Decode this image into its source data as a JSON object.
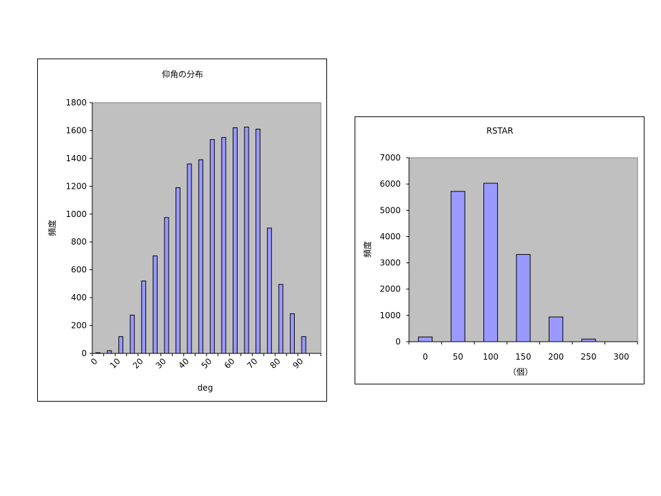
{
  "chart_data": [
    {
      "type": "bar",
      "title": "仰角の分布",
      "xlabel": "deg",
      "ylabel": "頻度",
      "categories": [
        "0",
        "5",
        "10",
        "15",
        "20",
        "25",
        "30",
        "35",
        "40",
        "45",
        "50",
        "55",
        "60",
        "65",
        "70",
        "75",
        "80",
        "85",
        "90",
        "95"
      ],
      "x_tick_labels": [
        "0",
        "10",
        "20",
        "30",
        "40",
        "50",
        "60",
        "70",
        "80",
        "90"
      ],
      "values": [
        5,
        20,
        120,
        275,
        520,
        700,
        975,
        1190,
        1360,
        1390,
        1535,
        1550,
        1620,
        1625,
        1610,
        900,
        495,
        285,
        120,
        0
      ],
      "y_ticks": [
        "0",
        "200",
        "400",
        "600",
        "800",
        "1000",
        "1200",
        "1400",
        "1600",
        "1800"
      ],
      "ylim": [
        0,
        1800
      ],
      "grid": false,
      "legend": "none",
      "colors": {
        "plot_bg": "#c0c0c0",
        "bar_fill": "#9999ff",
        "bar_stroke": "#000000"
      }
    },
    {
      "type": "bar",
      "title": "RSTAR",
      "xlabel": "（個）",
      "ylabel": "頻度",
      "categories": [
        "0",
        "50",
        "100",
        "150",
        "200",
        "250",
        "300"
      ],
      "values": [
        180,
        5720,
        6030,
        3320,
        940,
        100,
        0
      ],
      "y_ticks": [
        "0",
        "1000",
        "2000",
        "3000",
        "4000",
        "5000",
        "6000",
        "7000"
      ],
      "ylim": [
        0,
        7000
      ],
      "grid": false,
      "legend": "none",
      "colors": {
        "plot_bg": "#c0c0c0",
        "bar_fill": "#9999ff",
        "bar_stroke": "#000000"
      }
    }
  ]
}
